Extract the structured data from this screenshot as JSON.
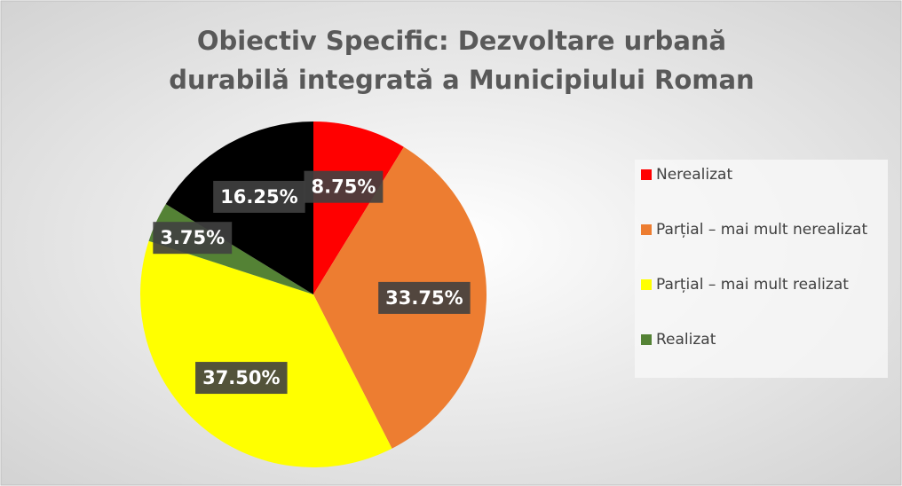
{
  "chart_data": {
    "type": "pie",
    "title": "Obiectiv Specific: Dezvoltare urbană durabilă integrată a Municipiului Roman",
    "categories": [
      "Nerealizat",
      "Parțial – mai mult nerealizat",
      "Parțial – mai mult realizat",
      "Realizat",
      null
    ],
    "values": [
      8.75,
      33.75,
      37.5,
      3.75,
      16.25
    ],
    "value_labels": [
      "8.75%",
      "33.75%",
      "37.50%",
      "3.75%",
      "16.25%"
    ],
    "colors": [
      "#ff0000",
      "#ed7d31",
      "#ffff00",
      "#548235",
      "#000000"
    ],
    "legend": "right"
  }
}
